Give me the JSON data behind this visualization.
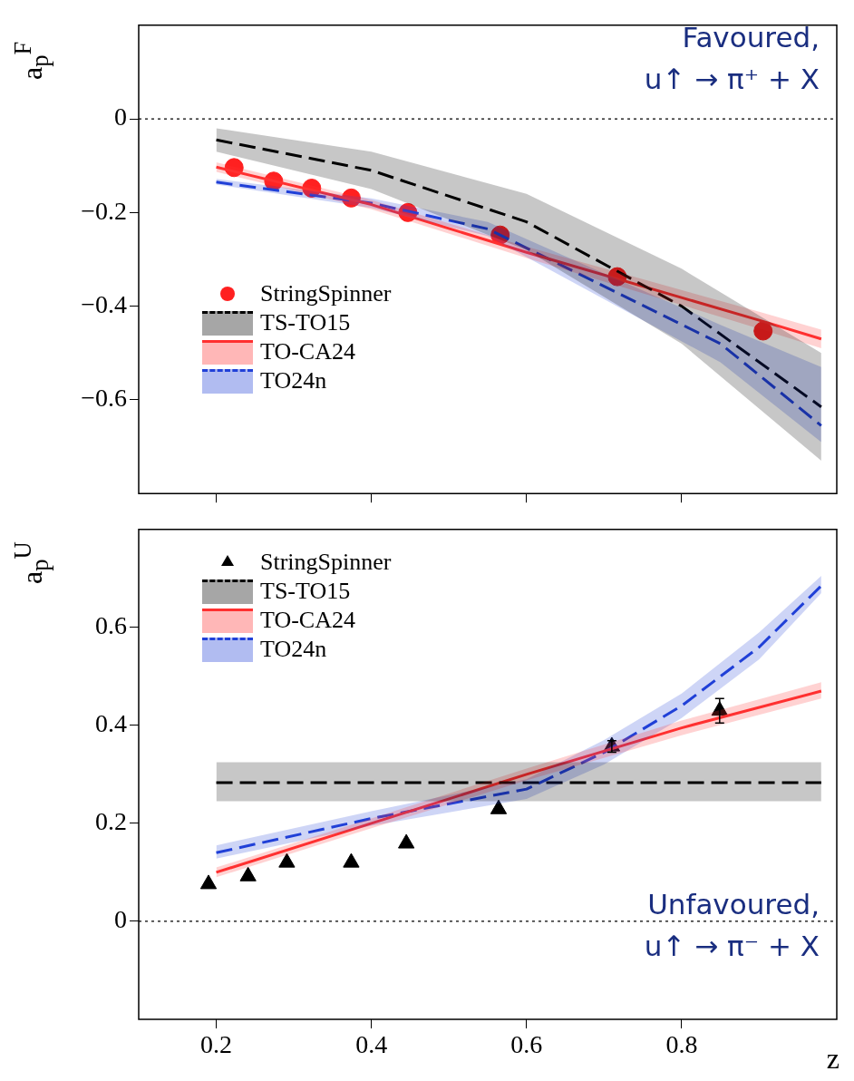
{
  "chart_data": [
    {
      "type": "line",
      "ylabel": "a$_{p}$$^{F}$",
      "xlim": [
        0.1,
        1.0
      ],
      "xticks": [
        0.2,
        0.4,
        0.6,
        0.8
      ],
      "ylim": [
        -0.8,
        0.2
      ],
      "yticks": [
        {
          "value": -0.6,
          "label": "−0.6"
        },
        {
          "value": -0.4,
          "label": "−0.4"
        },
        {
          "value": -0.2,
          "label": "−0.2"
        },
        0
      ],
      "tick_labels": "y",
      "grid": false,
      "legend": "bottom left",
      "annotations": [
        "Favoured,",
        "u↑ → π⁺ + X"
      ],
      "ref_lines": [
        {
          "axis": "y",
          "value": 0,
          "color": "#000000",
          "line_style": "dotted"
        }
      ],
      "series": [
        {
          "name": "StringSpinner",
          "type": "scatter",
          "marker": "circle",
          "color": "#ff2020",
          "x": [
            0.223,
            0.274,
            0.323,
            0.374,
            0.447,
            0.566,
            0.717,
            0.905
          ],
          "values": [
            -0.104,
            -0.133,
            -0.148,
            -0.169,
            -0.2,
            -0.248,
            -0.337,
            -0.453
          ]
        },
        {
          "name": "TS-TO15",
          "type": "line",
          "line_style": "dashed",
          "color": "#000000",
          "x": [
            0.2,
            0.4,
            0.6,
            0.8,
            0.98
          ],
          "values": [
            -0.045,
            -0.11,
            -0.22,
            -0.4,
            -0.615
          ],
          "lower": [
            -0.07,
            -0.15,
            -0.28,
            -0.48,
            -0.73
          ],
          "upper": [
            -0.02,
            -0.07,
            -0.16,
            -0.32,
            -0.5
          ]
        },
        {
          "name": "TO-CA24",
          "type": "line",
          "line_style": "solid",
          "color": "#ff3030",
          "x": [
            0.2,
            0.4,
            0.6,
            0.9,
            0.98
          ],
          "values": [
            -0.103,
            -0.183,
            -0.285,
            -0.43,
            -0.47
          ],
          "lower": [
            -0.113,
            -0.193,
            -0.297,
            -0.448,
            -0.49
          ],
          "upper": [
            -0.093,
            -0.173,
            -0.273,
            -0.412,
            -0.45
          ]
        },
        {
          "name": "TO24n",
          "type": "line",
          "line_style": "dashed",
          "color": "#2040d8",
          "x": [
            0.2,
            0.4,
            0.55,
            0.85,
            0.98
          ],
          "values": [
            -0.135,
            -0.18,
            -0.235,
            -0.48,
            -0.655
          ],
          "lower": [
            -0.14,
            -0.19,
            -0.25,
            -0.52,
            -0.69
          ],
          "upper": [
            -0.128,
            -0.17,
            -0.22,
            -0.44,
            -0.53
          ]
        }
      ]
    },
    {
      "type": "line",
      "ylabel": "a$_{p}$$^{U}$",
      "xlabel": "z",
      "xlim": [
        0.1,
        1.0
      ],
      "xticks": [
        0.2,
        0.4,
        0.6,
        0.8
      ],
      "ylim": [
        -0.2,
        0.8
      ],
      "yticks": [
        0,
        0.2,
        0.4,
        0.6
      ],
      "grid": false,
      "legend": "top left",
      "annotations": [
        "Unfavoured,",
        "u↑ → π⁻ + X"
      ],
      "ref_lines": [
        {
          "axis": "y",
          "value": 0,
          "color": "#000000",
          "line_style": "dotted"
        }
      ],
      "series": [
        {
          "name": "StringSpinner",
          "type": "scatter",
          "marker": "triangle",
          "color": "#000000",
          "x": [
            0.19,
            0.241,
            0.291,
            0.374,
            0.445,
            0.564,
            0.71,
            0.849
          ],
          "values": [
            0.076,
            0.092,
            0.12,
            0.12,
            0.159,
            0.229,
            0.357,
            0.43
          ],
          "errors": [
            null,
            null,
            null,
            null,
            null,
            null,
            0.012,
            0.025
          ]
        },
        {
          "name": "TS-TO15",
          "type": "line",
          "line_style": "dashed",
          "color": "#000000",
          "x": [
            0.2,
            0.98
          ],
          "values": [
            0.283,
            0.283
          ],
          "lower": [
            0.245,
            0.245
          ],
          "upper": [
            0.325,
            0.325
          ]
        },
        {
          "name": "TO-CA24",
          "type": "line",
          "line_style": "solid",
          "color": "#ff3030",
          "x": [
            0.2,
            0.4,
            0.6,
            0.8,
            0.98
          ],
          "values": [
            0.1,
            0.2,
            0.3,
            0.395,
            0.47
          ],
          "lower": [
            0.09,
            0.19,
            0.288,
            0.38,
            0.455
          ],
          "upper": [
            0.11,
            0.21,
            0.312,
            0.41,
            0.488
          ]
        },
        {
          "name": "TO24n",
          "type": "line",
          "line_style": "dashed",
          "color": "#2040d8",
          "x": [
            0.2,
            0.4,
            0.6,
            0.7,
            0.8,
            0.9,
            0.98
          ],
          "values": [
            0.14,
            0.21,
            0.27,
            0.345,
            0.44,
            0.56,
            0.685
          ],
          "lower": [
            0.128,
            0.195,
            0.25,
            0.32,
            0.415,
            0.535,
            0.67
          ],
          "upper": [
            0.155,
            0.225,
            0.29,
            0.37,
            0.465,
            0.59,
            0.705
          ]
        }
      ]
    }
  ]
}
